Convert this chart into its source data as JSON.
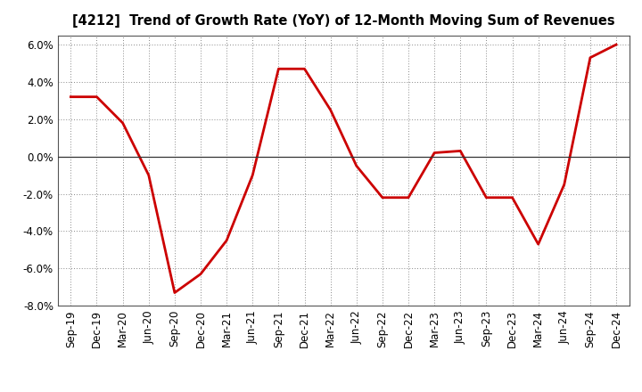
{
  "title": "[4212]  Trend of Growth Rate (YoY) of 12-Month Moving Sum of Revenues",
  "line_color": "#cc0000",
  "background_color": "#ffffff",
  "grid_color": "#888888",
  "ylim": [
    -0.08,
    0.065
  ],
  "yticks": [
    -0.08,
    -0.06,
    -0.04,
    -0.02,
    0.0,
    0.02,
    0.04,
    0.06
  ],
  "labels": [
    "Sep-19",
    "Dec-19",
    "Mar-20",
    "Jun-20",
    "Sep-20",
    "Dec-20",
    "Mar-21",
    "Jun-21",
    "Sep-21",
    "Dec-21",
    "Mar-22",
    "Jun-22",
    "Sep-22",
    "Dec-22",
    "Mar-23",
    "Jun-23",
    "Sep-23",
    "Dec-23",
    "Mar-24",
    "Jun-24",
    "Sep-24",
    "Dec-24"
  ],
  "values": [
    0.032,
    0.032,
    0.018,
    -0.01,
    -0.073,
    -0.063,
    -0.045,
    -0.01,
    0.047,
    0.047,
    0.025,
    -0.005,
    -0.022,
    -0.022,
    0.002,
    0.003,
    -0.022,
    -0.022,
    -0.047,
    -0.015,
    0.053,
    0.06
  ]
}
